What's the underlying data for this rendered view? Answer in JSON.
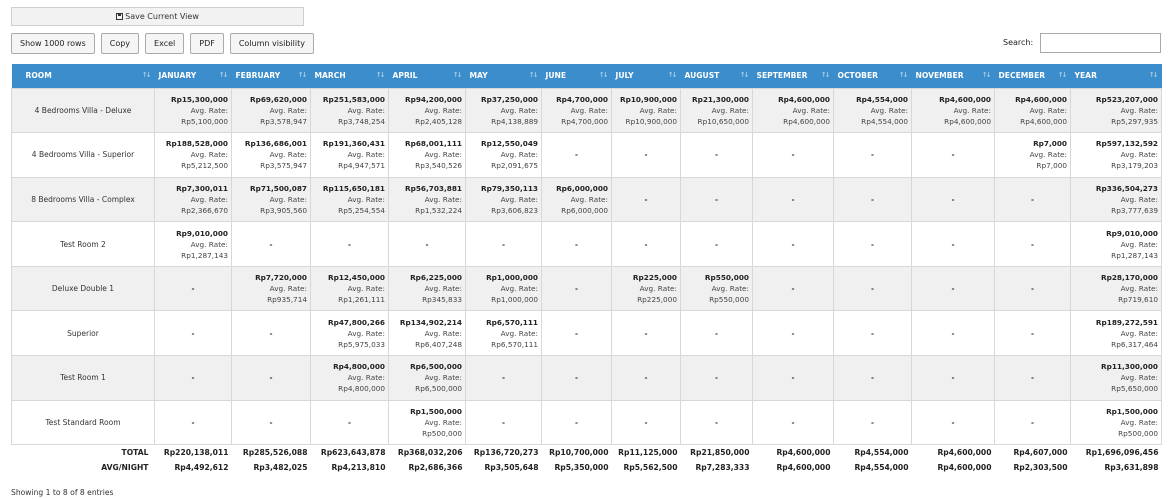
{
  "save_view_label": "Save Current View",
  "toolbar": {
    "show_rows": "Show 1000 rows",
    "copy": "Copy",
    "excel": "Excel",
    "pdf": "PDF",
    "column_visibility": "Column visibility"
  },
  "search": {
    "label": "Search:",
    "value": ""
  },
  "table": {
    "headers": [
      "ROOM",
      "JANUARY",
      "FEBRUARY",
      "MARCH",
      "APRIL",
      "MAY",
      "JUNE",
      "JULY",
      "AUGUST",
      "SEPTEMBER",
      "OCTOBER",
      "NOVEMBER",
      "DECEMBER",
      "YEAR"
    ],
    "avg_label": "Avg. Rate:",
    "empty_mark": "-",
    "rows": [
      {
        "room": "4 Bedrooms Villa - Deluxe",
        "cells": [
          [
            "Rp15,300,000",
            "Rp5,100,000"
          ],
          [
            "Rp69,620,000",
            "Rp3,578,947"
          ],
          [
            "Rp251,583,000",
            "Rp3,748,254"
          ],
          [
            "Rp94,200,000",
            "Rp2,405,128"
          ],
          [
            "Rp37,250,000",
            "Rp4,138,889"
          ],
          [
            "Rp4,700,000",
            "Rp4,700,000"
          ],
          [
            "Rp10,900,000",
            "Rp10,900,000"
          ],
          [
            "Rp21,300,000",
            "Rp10,650,000"
          ],
          [
            "Rp4,600,000",
            "Rp4,600,000"
          ],
          [
            "Rp4,554,000",
            "Rp4,554,000"
          ],
          [
            "Rp4,600,000",
            "Rp4,600,000"
          ],
          [
            "Rp4,600,000",
            "Rp4,600,000"
          ],
          [
            "Rp523,207,000",
            "Rp5,297,935"
          ]
        ]
      },
      {
        "room": "4 Bedrooms Villa - Superior",
        "cells": [
          [
            "Rp188,528,000",
            "Rp5,212,500"
          ],
          [
            "Rp136,686,001",
            "Rp3,575,947"
          ],
          [
            "Rp191,360,431",
            "Rp4,947,571"
          ],
          [
            "Rp68,001,111",
            "Rp3,540,526"
          ],
          [
            "Rp12,550,049",
            "Rp2,091,675"
          ],
          null,
          null,
          null,
          null,
          null,
          null,
          [
            "Rp7,000",
            "Rp7,000"
          ],
          [
            "Rp597,132,592",
            "Rp3,179,203"
          ]
        ]
      },
      {
        "room": "8 Bedrooms Villa - Complex",
        "cells": [
          [
            "Rp7,300,011",
            "Rp2,366,670"
          ],
          [
            "Rp71,500,087",
            "Rp3,905,560"
          ],
          [
            "Rp115,650,181",
            "Rp5,254,554"
          ],
          [
            "Rp56,703,881",
            "Rp1,532,224"
          ],
          [
            "Rp79,350,113",
            "Rp3,606,823"
          ],
          [
            "Rp6,000,000",
            "Rp6,000,000"
          ],
          null,
          null,
          null,
          null,
          null,
          null,
          [
            "Rp336,504,273",
            "Rp3,777,639"
          ]
        ]
      },
      {
        "room": "Test Room 2",
        "cells": [
          [
            "Rp9,010,000",
            "Rp1,287,143"
          ],
          null,
          null,
          null,
          null,
          null,
          null,
          null,
          null,
          null,
          null,
          null,
          [
            "Rp9,010,000",
            "Rp1,287,143"
          ]
        ]
      },
      {
        "room": "Deluxe Double 1",
        "cells": [
          null,
          [
            "Rp7,720,000",
            "Rp935,714"
          ],
          [
            "Rp12,450,000",
            "Rp1,261,111"
          ],
          [
            "Rp6,225,000",
            "Rp345,833"
          ],
          [
            "Rp1,000,000",
            "Rp1,000,000"
          ],
          null,
          [
            "Rp225,000",
            "Rp225,000"
          ],
          [
            "Rp550,000",
            "Rp550,000"
          ],
          null,
          null,
          null,
          null,
          [
            "Rp28,170,000",
            "Rp719,610"
          ]
        ]
      },
      {
        "room": "Superior",
        "cells": [
          null,
          null,
          [
            "Rp47,800,266",
            "Rp5,975,033"
          ],
          [
            "Rp134,902,214",
            "Rp6,407,248"
          ],
          [
            "Rp6,570,111",
            "Rp6,570,111"
          ],
          null,
          null,
          null,
          null,
          null,
          null,
          null,
          [
            "Rp189,272,591",
            "Rp6,317,464"
          ]
        ]
      },
      {
        "room": "Test Room 1",
        "cells": [
          null,
          null,
          [
            "Rp4,800,000",
            "Rp4,800,000"
          ],
          [
            "Rp6,500,000",
            "Rp6,500,000"
          ],
          null,
          null,
          null,
          null,
          null,
          null,
          null,
          null,
          [
            "Rp11,300,000",
            "Rp5,650,000"
          ]
        ]
      },
      {
        "room": "Test Standard Room",
        "cells": [
          null,
          null,
          null,
          [
            "Rp1,500,000",
            "Rp500,000"
          ],
          null,
          null,
          null,
          null,
          null,
          null,
          null,
          null,
          [
            "Rp1,500,000",
            "Rp500,000"
          ]
        ]
      }
    ],
    "footer": {
      "total_label": "TOTAL",
      "totals": [
        "Rp220,138,011",
        "Rp285,526,088",
        "Rp623,643,878",
        "Rp368,032,206",
        "Rp136,720,273",
        "Rp10,700,000",
        "Rp11,125,000",
        "Rp21,850,000",
        "Rp4,600,000",
        "Rp4,554,000",
        "Rp4,600,000",
        "Rp4,607,000",
        "Rp1,696,096,456"
      ],
      "avg_label": "AVG/NIGHT",
      "avgs": [
        "Rp4,492,612",
        "Rp3,482,025",
        "Rp4,213,810",
        "Rp2,686,366",
        "Rp3,505,648",
        "Rp5,350,000",
        "Rp5,562,500",
        "Rp7,283,333",
        "Rp4,600,000",
        "Rp4,554,000",
        "Rp4,600,000",
        "Rp2,303,500",
        "Rp3,631,898"
      ]
    }
  },
  "info_text": "Showing 1 to 8 of 8 entries"
}
